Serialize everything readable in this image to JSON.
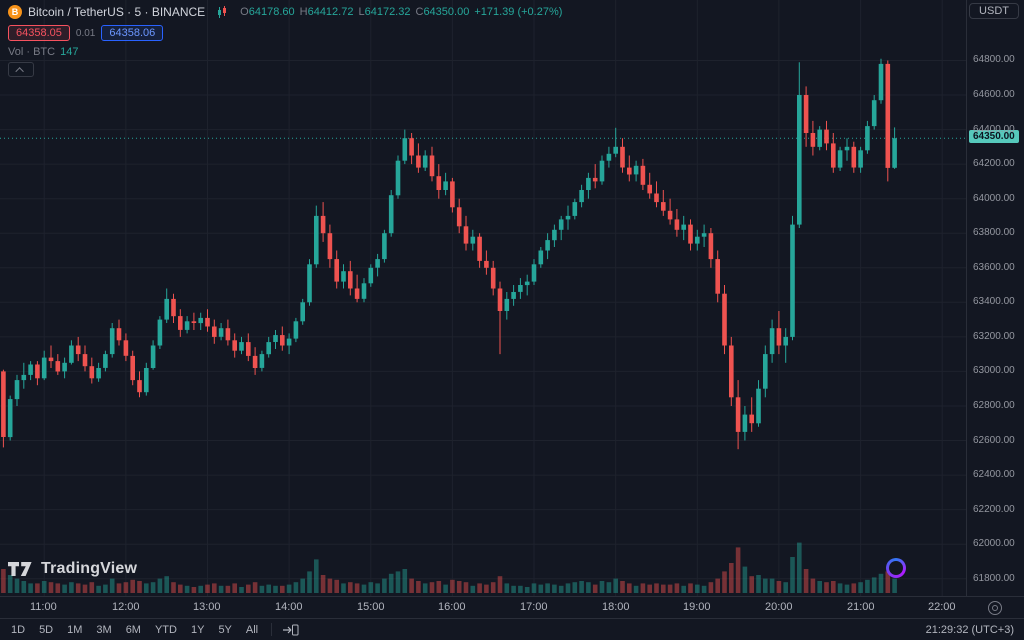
{
  "header": {
    "symbol_title": "Bitcoin / TetherUS · 5 · BINANCE",
    "ohlc": {
      "o_label": "O",
      "o": "64178.60",
      "h_label": "H",
      "h": "64412.72",
      "l_label": "L",
      "l": "64172.32",
      "c_label": "C",
      "c": "64350.00",
      "change": "+171.39 (+0.27%)"
    },
    "currency_button": "USDT"
  },
  "quote": {
    "bid": "64358.05",
    "spread": "0.01",
    "ask": "64358.06"
  },
  "volume_legend": {
    "label": "Vol · BTC",
    "value": "147"
  },
  "watermark": {
    "brand": "TradingView"
  },
  "toolbar": {
    "ranges": [
      "1D",
      "5D",
      "1M",
      "3M",
      "6M",
      "YTD",
      "1Y",
      "5Y",
      "All"
    ],
    "clock": "21:29:32 (UTC+3)"
  },
  "axis": {
    "price_ticks": [
      "64800.00",
      "64600.00",
      "64400.00",
      "64200.00",
      "64000.00",
      "63800.00",
      "63600.00",
      "63400.00",
      "63200.00",
      "63000.00",
      "62800.00",
      "62600.00",
      "62400.00",
      "62200.00",
      "62000.00",
      "61800.00"
    ],
    "time_labels": [
      "11:00",
      "12:00",
      "13:00",
      "14:00",
      "15:00",
      "16:00",
      "17:00",
      "18:00",
      "19:00",
      "20:00",
      "21:00",
      "22:00"
    ]
  },
  "colors": {
    "up": "#26a69a",
    "down": "#ef5350",
    "bg": "#131722",
    "grid": "#1e222d",
    "axis_text": "#9598a1",
    "accent_blue": "#2962ff",
    "accent_red": "#f7525f",
    "price_label_bg": "#56c9bc"
  },
  "chart_data": {
    "type": "candlestick",
    "title": "Bitcoin / TetherUS",
    "symbol": "BTCUSDT",
    "exchange": "BINANCE",
    "interval": "5",
    "start_time": "10:30",
    "interval_minutes": 5,
    "total_slots": 142,
    "y_range": [
      61700,
      65150
    ],
    "grid_price_step": 200,
    "current_price": "64350.00",
    "current_price_value": 64350.0,
    "volume_max": 45,
    "candles": [
      [
        63000,
        63010,
        62560,
        62620,
        20
      ],
      [
        62620,
        62860,
        62600,
        62840,
        15
      ],
      [
        62840,
        62980,
        62800,
        62950,
        12
      ],
      [
        62950,
        63050,
        62900,
        62980,
        10
      ],
      [
        62980,
        63060,
        62950,
        63040,
        8
      ],
      [
        63040,
        63060,
        62920,
        62960,
        8
      ],
      [
        62960,
        63120,
        62950,
        63080,
        10
      ],
      [
        63080,
        63150,
        63020,
        63060,
        9
      ],
      [
        63060,
        63100,
        62980,
        63000,
        8
      ],
      [
        63000,
        63080,
        62960,
        63050,
        7
      ],
      [
        63050,
        63180,
        63040,
        63150,
        9
      ],
      [
        63150,
        63200,
        63060,
        63100,
        8
      ],
      [
        63100,
        63150,
        63000,
        63030,
        7
      ],
      [
        63030,
        63080,
        62930,
        62960,
        9
      ],
      [
        62960,
        63050,
        62940,
        63020,
        6
      ],
      [
        63020,
        63120,
        63000,
        63100,
        7
      ],
      [
        63100,
        63280,
        63080,
        63250,
        12
      ],
      [
        63250,
        63300,
        63150,
        63180,
        8
      ],
      [
        63180,
        63220,
        63060,
        63090,
        9
      ],
      [
        63090,
        63120,
        62920,
        62950,
        11
      ],
      [
        62950,
        63000,
        62850,
        62880,
        10
      ],
      [
        62880,
        63050,
        62860,
        63020,
        8
      ],
      [
        63020,
        63180,
        63010,
        63150,
        9
      ],
      [
        63150,
        63320,
        63130,
        63300,
        12
      ],
      [
        63300,
        63480,
        63280,
        63420,
        14
      ],
      [
        63420,
        63450,
        63280,
        63320,
        9
      ],
      [
        63320,
        63360,
        63200,
        63240,
        7
      ],
      [
        63240,
        63320,
        63220,
        63290,
        6
      ],
      [
        63290,
        63340,
        63240,
        63280,
        5
      ],
      [
        63280,
        63340,
        63240,
        63310,
        6
      ],
      [
        63310,
        63360,
        63230,
        63260,
        7
      ],
      [
        63260,
        63300,
        63160,
        63200,
        8
      ],
      [
        63200,
        63280,
        63180,
        63250,
        6
      ],
      [
        63250,
        63300,
        63150,
        63180,
        6
      ],
      [
        63180,
        63220,
        63080,
        63120,
        8
      ],
      [
        63120,
        63200,
        63100,
        63170,
        5
      ],
      [
        63170,
        63220,
        63060,
        63090,
        7
      ],
      [
        63090,
        63140,
        62980,
        63020,
        9
      ],
      [
        63020,
        63120,
        63000,
        63100,
        6
      ],
      [
        63100,
        63200,
        63080,
        63170,
        7
      ],
      [
        63170,
        63240,
        63130,
        63210,
        6
      ],
      [
        63210,
        63260,
        63120,
        63150,
        6
      ],
      [
        63150,
        63220,
        63100,
        63190,
        7
      ],
      [
        63190,
        63310,
        63170,
        63290,
        9
      ],
      [
        63290,
        63420,
        63270,
        63400,
        12
      ],
      [
        63400,
        63650,
        63380,
        63620,
        18
      ],
      [
        63620,
        63960,
        63600,
        63900,
        28
      ],
      [
        63900,
        63980,
        63750,
        63800,
        15
      ],
      [
        63800,
        63850,
        63600,
        63650,
        12
      ],
      [
        63650,
        63700,
        63480,
        63520,
        11
      ],
      [
        63520,
        63620,
        63480,
        63580,
        8
      ],
      [
        63580,
        63640,
        63440,
        63480,
        9
      ],
      [
        63480,
        63560,
        63400,
        63420,
        8
      ],
      [
        63420,
        63540,
        63400,
        63510,
        7
      ],
      [
        63510,
        63620,
        63490,
        63600,
        9
      ],
      [
        63600,
        63680,
        63550,
        63650,
        8
      ],
      [
        63650,
        63820,
        63630,
        63800,
        12
      ],
      [
        63800,
        64050,
        63780,
        64020,
        16
      ],
      [
        64020,
        64250,
        64000,
        64220,
        18
      ],
      [
        64220,
        64400,
        64200,
        64350,
        20
      ],
      [
        64350,
        64380,
        64200,
        64250,
        12
      ],
      [
        64250,
        64320,
        64150,
        64180,
        10
      ],
      [
        64180,
        64280,
        64160,
        64250,
        8
      ],
      [
        64250,
        64300,
        64100,
        64130,
        9
      ],
      [
        64130,
        64200,
        64000,
        64050,
        10
      ],
      [
        64050,
        64150,
        64020,
        64100,
        7
      ],
      [
        64100,
        64120,
        63920,
        63950,
        11
      ],
      [
        63950,
        64000,
        63800,
        63840,
        10
      ],
      [
        63840,
        63900,
        63700,
        63740,
        9
      ],
      [
        63740,
        63820,
        63700,
        63780,
        6
      ],
      [
        63780,
        63800,
        63600,
        63640,
        8
      ],
      [
        63640,
        63700,
        63560,
        63600,
        7
      ],
      [
        63600,
        63640,
        63440,
        63480,
        9
      ],
      [
        63480,
        63520,
        63100,
        63350,
        14
      ],
      [
        63350,
        63460,
        63300,
        63420,
        8
      ],
      [
        63420,
        63500,
        63380,
        63460,
        6
      ],
      [
        63460,
        63540,
        63420,
        63500,
        6
      ],
      [
        63500,
        63560,
        63440,
        63520,
        5
      ],
      [
        63520,
        63650,
        63500,
        63620,
        8
      ],
      [
        63620,
        63720,
        63600,
        63700,
        7
      ],
      [
        63700,
        63800,
        63650,
        63760,
        8
      ],
      [
        63760,
        63850,
        63720,
        63820,
        7
      ],
      [
        63820,
        63900,
        63760,
        63880,
        6
      ],
      [
        63880,
        63960,
        63820,
        63900,
        8
      ],
      [
        63900,
        64000,
        63880,
        63980,
        9
      ],
      [
        63980,
        64080,
        63950,
        64050,
        10
      ],
      [
        64050,
        64150,
        64000,
        64120,
        9
      ],
      [
        64120,
        64200,
        64060,
        64100,
        7
      ],
      [
        64100,
        64250,
        64080,
        64220,
        10
      ],
      [
        64220,
        64300,
        64180,
        64260,
        9
      ],
      [
        64260,
        64410,
        64240,
        64300,
        12
      ],
      [
        64300,
        64350,
        64150,
        64180,
        10
      ],
      [
        64180,
        64250,
        64100,
        64140,
        8
      ],
      [
        64140,
        64220,
        64100,
        64190,
        6
      ],
      [
        64190,
        64230,
        64050,
        64080,
        8
      ],
      [
        64080,
        64150,
        64000,
        64030,
        7
      ],
      [
        64030,
        64100,
        63950,
        63980,
        8
      ],
      [
        63980,
        64050,
        63900,
        63930,
        7
      ],
      [
        63930,
        64000,
        63850,
        63880,
        7
      ],
      [
        63880,
        63940,
        63780,
        63820,
        8
      ],
      [
        63820,
        63900,
        63760,
        63850,
        6
      ],
      [
        63850,
        63880,
        63700,
        63740,
        8
      ],
      [
        63740,
        63820,
        63700,
        63780,
        7
      ],
      [
        63780,
        63850,
        63720,
        63800,
        6
      ],
      [
        63800,
        63830,
        63600,
        63650,
        9
      ],
      [
        63650,
        63700,
        63400,
        63450,
        12
      ],
      [
        63450,
        63500,
        63100,
        63150,
        18
      ],
      [
        63150,
        63200,
        62800,
        62850,
        25
      ],
      [
        62850,
        62950,
        62550,
        62650,
        38
      ],
      [
        62650,
        62800,
        62600,
        62750,
        22
      ],
      [
        62750,
        62850,
        62650,
        62700,
        14
      ],
      [
        62700,
        62950,
        62680,
        62900,
        15
      ],
      [
        62900,
        63150,
        62850,
        63100,
        12
      ],
      [
        63100,
        63300,
        63050,
        63250,
        12
      ],
      [
        63250,
        63350,
        63100,
        63150,
        10
      ],
      [
        63150,
        63250,
        63050,
        63200,
        9
      ],
      [
        63200,
        63900,
        63180,
        63850,
        30
      ],
      [
        63850,
        64790,
        63830,
        64600,
        42
      ],
      [
        64600,
        64650,
        64300,
        64380,
        20
      ],
      [
        64380,
        64450,
        64250,
        64300,
        12
      ],
      [
        64300,
        64420,
        64280,
        64400,
        10
      ],
      [
        64400,
        64450,
        64280,
        64320,
        9
      ],
      [
        64320,
        64380,
        64150,
        64180,
        10
      ],
      [
        64180,
        64300,
        64160,
        64280,
        8
      ],
      [
        64280,
        64350,
        64220,
        64300,
        7
      ],
      [
        64300,
        64330,
        64150,
        64180,
        8
      ],
      [
        64180,
        64300,
        64150,
        64280,
        9
      ],
      [
        64280,
        64450,
        64260,
        64420,
        11
      ],
      [
        64420,
        64600,
        64400,
        64570,
        13
      ],
      [
        64570,
        64810,
        64550,
        64780,
        16
      ],
      [
        64780,
        64800,
        64100,
        64178,
        18
      ],
      [
        64178.6,
        64412.72,
        64172.32,
        64350,
        12
      ]
    ]
  }
}
